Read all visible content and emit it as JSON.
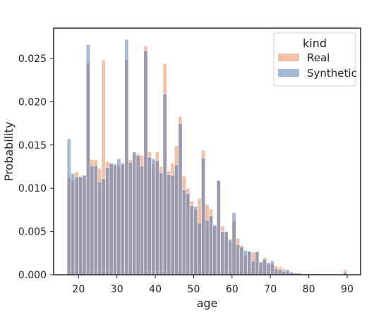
{
  "chart_data": {
    "type": "bar",
    "xlabel": "age",
    "ylabel": "Probability",
    "xlim": [
      13.5,
      93.5
    ],
    "ylim": [
      0,
      0.0285
    ],
    "xticks": [
      20,
      30,
      40,
      50,
      60,
      70,
      80,
      90
    ],
    "yticks": [
      0.0,
      0.005,
      0.01,
      0.015,
      0.02,
      0.025
    ],
    "ytick_labels": [
      "0.000",
      "0.005",
      "0.010",
      "0.015",
      "0.020",
      "0.025"
    ],
    "bin_start": 17.0,
    "bin_width": 1.0,
    "legend": {
      "title": "kind",
      "position": "top-right",
      "entries": [
        "Real",
        "Synthetic"
      ]
    },
    "series": [
      {
        "name": "Real",
        "color": "#DD8452",
        "values": [
          0.0113,
          0.0109,
          0.0119,
          0.0114,
          0.0115,
          0.0245,
          0.0133,
          0.0133,
          0.0123,
          0.0248,
          0.0131,
          0.0128,
          0.0126,
          0.0126,
          0.013,
          0.0248,
          0.0133,
          0.014,
          0.014,
          0.0138,
          0.0264,
          0.0142,
          0.0128,
          0.0142,
          0.0125,
          0.0244,
          0.012,
          0.0129,
          0.0149,
          0.0183,
          0.0114,
          0.01,
          0.0085,
          0.0075,
          0.0088,
          0.0144,
          0.0081,
          0.0076,
          0.0058,
          0.0109,
          0.0056,
          0.0049,
          0.0038,
          0.0062,
          0.0042,
          0.0034,
          0.0022,
          0.0027,
          0.0026,
          0.0026,
          0.0014,
          0.002,
          0.0012,
          0.0012,
          0.001,
          0.0009,
          0.0007,
          0.0004,
          0.0003,
          0.0002,
          0.0002,
          0.0001,
          0.0001,
          0.0001,
          0.0001,
          0.0001,
          0.0001,
          0.0001,
          0.0001,
          0.0001,
          0.0,
          0.0,
          0.0006
        ]
      },
      {
        "name": "Synthetic",
        "color": "#4C72B0",
        "values": [
          0.0157,
          0.0117,
          0.0113,
          0.0113,
          0.0115,
          0.0266,
          0.0126,
          0.0126,
          0.0107,
          0.0111,
          0.0124,
          0.0129,
          0.0128,
          0.0134,
          0.0128,
          0.0272,
          0.013,
          0.0142,
          0.0138,
          0.0126,
          0.0259,
          0.0136,
          0.0134,
          0.0132,
          0.0118,
          0.0209,
          0.0116,
          0.0115,
          0.0127,
          0.0175,
          0.0098,
          0.0094,
          0.008,
          0.0079,
          0.006,
          0.0135,
          0.0063,
          0.0068,
          0.0057,
          0.0109,
          0.005,
          0.005,
          0.0041,
          0.0072,
          0.0035,
          0.0032,
          0.0028,
          0.0027,
          0.0016,
          0.0027,
          0.0015,
          0.0018,
          0.0014,
          0.0016,
          0.0007,
          0.0006,
          0.0004,
          0.0006,
          0.0003,
          0.0002,
          0.0002,
          0.0001,
          0.0001,
          0.0001,
          0.0001,
          0.0,
          0.0,
          0.0,
          0.0,
          0.0,
          0.0,
          0.0,
          0.0003
        ]
      }
    ],
    "grid": false
  }
}
